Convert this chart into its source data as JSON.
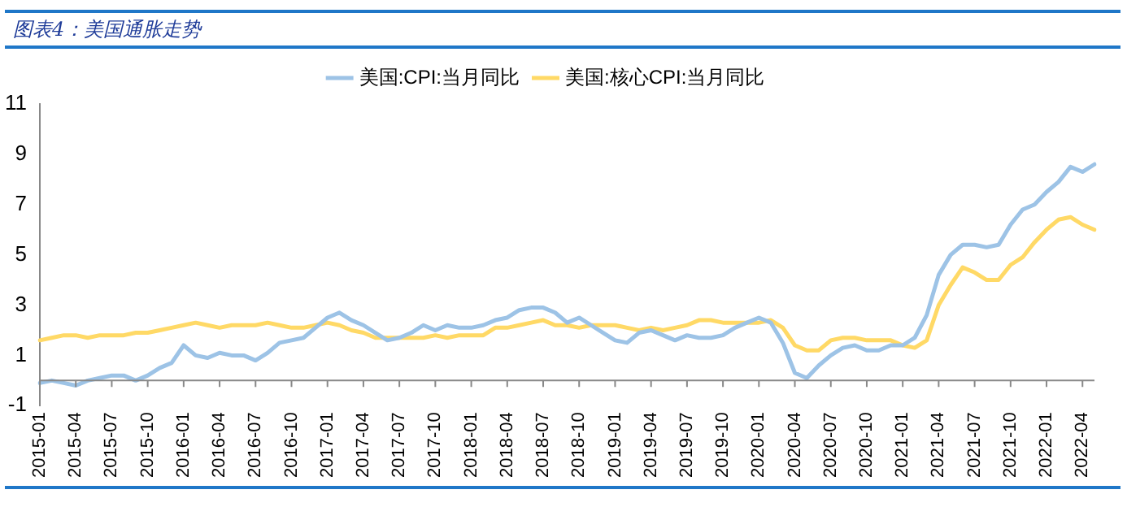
{
  "chart_data": {
    "type": "line",
    "title": "图表4：美国通胀走势",
    "categories": [
      "2015-01",
      null,
      null,
      "2015-04",
      null,
      null,
      "2015-07",
      null,
      null,
      "2015-10",
      null,
      null,
      "2016-01",
      null,
      null,
      "2016-04",
      null,
      null,
      "2016-07",
      null,
      null,
      "2016-10",
      null,
      null,
      "2017-01",
      null,
      null,
      "2017-04",
      null,
      null,
      "2017-07",
      null,
      null,
      "2017-10",
      null,
      null,
      "2018-01",
      null,
      null,
      "2018-04",
      null,
      null,
      "2018-07",
      null,
      null,
      "2018-10",
      null,
      null,
      "2019-01",
      null,
      null,
      "2019-04",
      null,
      null,
      "2019-07",
      null,
      null,
      "2019-10",
      null,
      null,
      "2020-01",
      null,
      null,
      "2020-04",
      null,
      null,
      "2020-07",
      null,
      null,
      "2020-10",
      null,
      null,
      "2021-01",
      null,
      null,
      "2021-04",
      null,
      null,
      "2021-07",
      null,
      null,
      "2021-10",
      null,
      null,
      "2022-01",
      null,
      null,
      "2022-04",
      null
    ],
    "series": [
      {
        "name": "美国:CPI:当月同比",
        "color": "#9dc3e6",
        "values": [
          -0.1,
          0.0,
          -0.1,
          -0.2,
          0.0,
          0.1,
          0.2,
          0.2,
          0.0,
          0.2,
          0.5,
          0.7,
          1.4,
          1.0,
          0.9,
          1.1,
          1.0,
          1.0,
          0.8,
          1.1,
          1.5,
          1.6,
          1.7,
          2.1,
          2.5,
          2.7,
          2.4,
          2.2,
          1.9,
          1.6,
          1.7,
          1.9,
          2.2,
          2.0,
          2.2,
          2.1,
          2.1,
          2.2,
          2.4,
          2.5,
          2.8,
          2.9,
          2.9,
          2.7,
          2.3,
          2.5,
          2.2,
          1.9,
          1.6,
          1.5,
          1.9,
          2.0,
          1.8,
          1.6,
          1.8,
          1.7,
          1.7,
          1.8,
          2.1,
          2.3,
          2.5,
          2.3,
          1.5,
          0.3,
          0.1,
          0.6,
          1.0,
          1.3,
          1.4,
          1.2,
          1.2,
          1.4,
          1.4,
          1.7,
          2.6,
          4.2,
          5.0,
          5.4,
          5.4,
          5.3,
          5.4,
          6.2,
          6.8,
          7.0,
          7.5,
          7.9,
          8.5,
          8.3,
          8.6
        ]
      },
      {
        "name": "美国:核心CPI:当月同比",
        "color": "#ffd966",
        "values": [
          1.6,
          1.7,
          1.8,
          1.8,
          1.7,
          1.8,
          1.8,
          1.8,
          1.9,
          1.9,
          2.0,
          2.1,
          2.2,
          2.3,
          2.2,
          2.1,
          2.2,
          2.2,
          2.2,
          2.3,
          2.2,
          2.1,
          2.1,
          2.2,
          2.3,
          2.2,
          2.0,
          1.9,
          1.7,
          1.7,
          1.7,
          1.7,
          1.7,
          1.8,
          1.7,
          1.8,
          1.8,
          1.8,
          2.1,
          2.1,
          2.2,
          2.3,
          2.4,
          2.2,
          2.2,
          2.1,
          2.2,
          2.2,
          2.2,
          2.1,
          2.0,
          2.1,
          2.0,
          2.1,
          2.2,
          2.4,
          2.4,
          2.3,
          2.3,
          2.3,
          2.3,
          2.4,
          2.1,
          1.4,
          1.2,
          1.2,
          1.6,
          1.7,
          1.7,
          1.6,
          1.6,
          1.6,
          1.4,
          1.3,
          1.6,
          3.0,
          3.8,
          4.5,
          4.3,
          4.0,
          4.0,
          4.6,
          4.9,
          5.5,
          6.0,
          6.4,
          6.5,
          6.2,
          6.0
        ]
      }
    ],
    "ylim": [
      -1,
      11
    ],
    "yticks": [
      -1,
      1,
      3,
      5,
      7,
      9,
      11
    ],
    "grid": false,
    "legend": "top",
    "marker": "none",
    "line_style": "solid"
  }
}
